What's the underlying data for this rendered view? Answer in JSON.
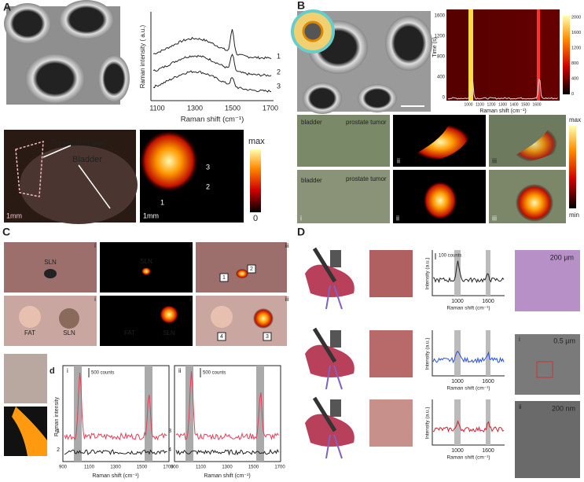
{
  "panel_a": {
    "label": "A",
    "spectrum": {
      "y_label": "Raman intensity ( a.u.)",
      "x_label": "Raman shift (cm⁻¹)",
      "x_ticks": [
        "1100",
        "1300",
        "1500",
        "1700"
      ],
      "curves": [
        "1",
        "2",
        "3"
      ]
    },
    "photo": {
      "resection": "Resection bed",
      "bladder": "Bladder",
      "scale": "1mm"
    },
    "map": {
      "scale": "1mm",
      "max": "max",
      "min": "0",
      "spots": [
        "1",
        "2",
        "3"
      ]
    }
  },
  "panel_b": {
    "label": "B",
    "heatmap": {
      "y_label": "Time (s)",
      "y_ticks": [
        "1600",
        "1200",
        "800",
        "400",
        "0"
      ],
      "x_label": "Raman shift (cm⁻¹)",
      "x_ticks": [
        "1000",
        "1100",
        "1200",
        "1300",
        "1400",
        "1500",
        "1600"
      ],
      "colorbar": [
        "2000",
        "1600",
        "1200",
        "800",
        "400",
        "0"
      ]
    },
    "row1": {
      "bladder": "bladder",
      "tumor": "prostate tumor",
      "subs": [
        "ii",
        "iii"
      ]
    },
    "row2": {
      "bladder": "bladder",
      "tumor": "prostate tumor",
      "subs": [
        "i",
        "ii",
        "iii"
      ]
    },
    "colorbar": {
      "max": "max",
      "min": "min"
    }
  },
  "panel_c": {
    "label": "C",
    "row1": {
      "subs": [
        "i",
        "ii",
        "iii"
      ],
      "sln": "SLN",
      "sln2": "SLN",
      "boxes": [
        "1",
        "2"
      ]
    },
    "row2": {
      "subs": [
        "i",
        "ii",
        "iii"
      ],
      "fat": "FAT",
      "sln": "SLN",
      "fat2": "FAT",
      "sln2": "SLN",
      "boxes": [
        "4",
        "3"
      ]
    },
    "plots": {
      "label": "d",
      "y_label": "Raman intensity",
      "x_label": "Raman shift (cm⁻¹)",
      "left": {
        "sub": "i",
        "scale": "500 counts",
        "curves": [
          "1",
          "2"
        ]
      },
      "right": {
        "sub": "ii",
        "scale": "500 counts",
        "curves": [
          "3",
          "4"
        ]
      },
      "x_ticks": [
        "900",
        "1100",
        "1300",
        "1500",
        "1700"
      ]
    }
  },
  "panel_d": {
    "label": "D",
    "scale": "100 counts",
    "y_label": "Intensity (a.u.)",
    "x_label": "Raman shift (cm⁻¹)",
    "x_ticks": [
      "1000",
      "1600"
    ],
    "images": {
      "histology": "200 µm",
      "tem1": "0.5 µm",
      "tem2": "200 nm",
      "sub1": "i",
      "sub2": "ii"
    }
  }
}
